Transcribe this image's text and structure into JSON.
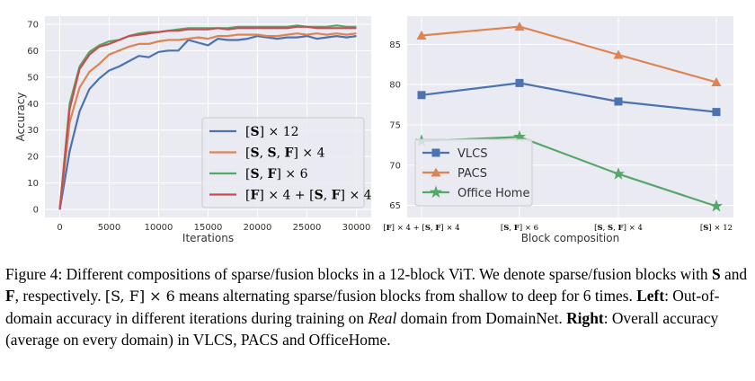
{
  "chart_data": [
    {
      "type": "line",
      "xlabel": "Iterations",
      "ylabel": "Accuracy",
      "xlim": [
        -1500,
        31500
      ],
      "ylim": [
        -3,
        73
      ],
      "xticks": [
        0,
        5000,
        10000,
        15000,
        20000,
        25000,
        30000
      ],
      "yticks": [
        0,
        10,
        20,
        30,
        40,
        50,
        60,
        70
      ],
      "grid": true,
      "legend_position": "lower-right",
      "x": [
        0,
        1000,
        2000,
        3000,
        4000,
        5000,
        6000,
        7000,
        8000,
        9000,
        10000,
        11000,
        12000,
        13000,
        14000,
        15000,
        16000,
        17000,
        18000,
        19000,
        20000,
        21000,
        22000,
        23000,
        24000,
        25000,
        26000,
        27000,
        28000,
        29000,
        30000
      ],
      "series": [
        {
          "name": "[S] × 12",
          "color": "#4c72b0",
          "values": [
            0,
            22,
            37,
            45.5,
            49.5,
            52.5,
            54,
            56,
            58,
            57.5,
            59.5,
            60,
            60,
            64,
            63,
            62,
            64.5,
            64,
            64,
            64.5,
            65.5,
            65,
            64.5,
            65,
            65,
            65.5,
            64.5,
            65,
            65.5,
            65,
            65.5
          ]
        },
        {
          "name": "[S, S, F] × 4",
          "color": "#dd8452",
          "values": [
            0,
            33,
            46,
            52,
            55,
            58.5,
            60,
            61.5,
            62.5,
            62.5,
            63.5,
            64,
            64,
            64.5,
            65,
            64.5,
            65.5,
            65.5,
            66,
            66,
            66,
            65.5,
            65.5,
            66,
            66.5,
            66,
            66.5,
            66,
            66.5,
            66,
            66.5
          ]
        },
        {
          "name": "[S, F] × 6",
          "color": "#55a868",
          "values": [
            0,
            40,
            54,
            59.5,
            62,
            63.5,
            64,
            65.5,
            66.5,
            67,
            67,
            67.5,
            68,
            68.5,
            68.5,
            68.5,
            68.5,
            68.5,
            69,
            69,
            69,
            69,
            69,
            69,
            69.5,
            69,
            69,
            69,
            69.5,
            69,
            69
          ]
        },
        {
          "name": "[F] × 4 + [S, F] × 4",
          "color": "#c44e52",
          "values": [
            0,
            38,
            53,
            58.5,
            61.5,
            62.5,
            64,
            65.5,
            66,
            66.5,
            67,
            67.5,
            67.5,
            68,
            68,
            68,
            68.5,
            68,
            68.5,
            68.5,
            68.5,
            68.5,
            68.5,
            68.5,
            69,
            69,
            68.5,
            68.5,
            68.5,
            68.5,
            68.5
          ]
        }
      ]
    },
    {
      "type": "line",
      "xlabel": "Block composition",
      "ylabel": "",
      "ylim": [
        63.5,
        88.5
      ],
      "yticks": [
        65,
        70,
        75,
        80,
        85
      ],
      "grid": true,
      "legend_position": "lower-left",
      "categories": [
        "[F] × 4 + [S, F] × 4",
        "[S, F] × 6",
        "[S, S, F] × 4",
        "[S] × 12"
      ],
      "series": [
        {
          "name": "VLCS",
          "color": "#4c72b0",
          "marker": "square",
          "values": [
            78.7,
            80.2,
            77.9,
            76.6
          ]
        },
        {
          "name": "PACS",
          "color": "#dd8452",
          "marker": "triangle",
          "values": [
            86.1,
            87.2,
            83.7,
            80.3
          ]
        },
        {
          "name": "Office Home",
          "color": "#55a868",
          "marker": "star",
          "values": [
            73.0,
            73.5,
            68.9,
            64.9
          ]
        }
      ]
    }
  ],
  "caption": {
    "p1": "Figure 4: Different compositions of sparse/fusion blocks in a 12-block ViT. We denote sparse/fusion blocks with ",
    "S": "S",
    "and": " and ",
    "F": "F",
    "p2": ", respectively. ",
    "math": "[S, F] × 6",
    "p3": " means alternating sparse/fusion blocks from shallow to deep for 6 times. ",
    "left_label": "Left",
    "p4": ": Out-of-domain accuracy in different iterations during training on ",
    "real": "Real",
    "p5": " domain from DomainNet. ",
    "right_label": "Right",
    "p6": ": Overall accuracy (average on every domain) in VLCS, PACS and OfficeHome."
  }
}
